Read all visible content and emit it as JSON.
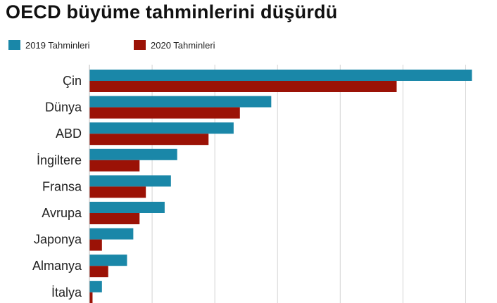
{
  "title": "OECD büyüme tahminlerini düşürdü",
  "legend": [
    {
      "label": "2019 Tahminleri",
      "color": "#1a87a8"
    },
    {
      "label": "2020 Tahminleri",
      "color": "#9b1206"
    }
  ],
  "chart_data": {
    "type": "bar",
    "orientation": "horizontal",
    "title": "OECD büyüme tahminlerini düşürdü",
    "categories": [
      "Çin",
      "Dünya",
      "ABD",
      "İngiltere",
      "Fransa",
      "Avrupa",
      "Japonya",
      "Almanya",
      "İtalya"
    ],
    "series": [
      {
        "name": "2019 Tahminleri",
        "color": "#1a87a8",
        "values": [
          6.1,
          2.9,
          2.3,
          1.4,
          1.3,
          1.2,
          0.7,
          0.6,
          0.2
        ]
      },
      {
        "name": "2020 Tahminleri",
        "color": "#9b1206",
        "values": [
          4.9,
          2.4,
          1.9,
          0.8,
          0.9,
          0.8,
          0.2,
          0.3,
          0.05
        ]
      }
    ],
    "xlim": [
      0,
      6.5
    ],
    "grid": true,
    "legend_position": "top-left"
  }
}
